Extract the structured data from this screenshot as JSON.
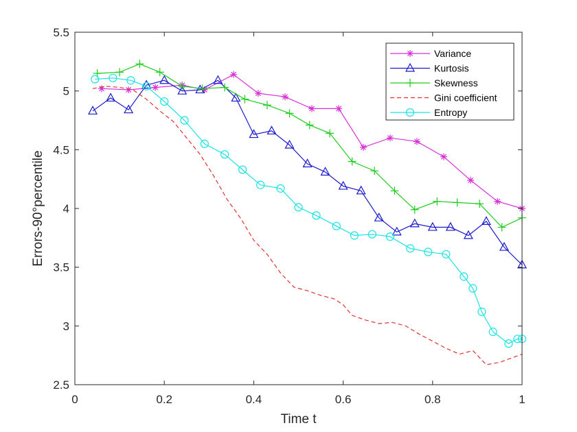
{
  "chart_data": {
    "type": "line",
    "title": "",
    "xlabel": "Time t",
    "ylabel": "Errors-90°percentile",
    "xlim": [
      0,
      1
    ],
    "ylim": [
      2.5,
      5.5
    ],
    "xticks": [
      "0",
      "0.2",
      "0.4",
      "0.6",
      "0.8",
      "1"
    ],
    "xtick_values": [
      0,
      0.2,
      0.4,
      0.6,
      0.8,
      1
    ],
    "yticks": [
      "2.5",
      "3",
      "3.5",
      "4",
      "4.5",
      "5",
      "5.5"
    ],
    "ytick_values": [
      2.5,
      3,
      3.5,
      4,
      4.5,
      5,
      5.5
    ],
    "grid": false,
    "legend_position": "top-right",
    "series": [
      {
        "name": "Variance",
        "color": "#d631d6",
        "marker": "asterisk",
        "dash": "solid",
        "x": [
          0.06,
          0.12,
          0.18,
          0.24,
          0.29,
          0.355,
          0.41,
          0.47,
          0.53,
          0.59,
          0.645,
          0.705,
          0.765,
          0.825,
          0.885,
          0.945,
          1.0
        ],
        "y": [
          5.02,
          5.01,
          5.03,
          5.05,
          5.01,
          5.14,
          4.98,
          4.95,
          4.85,
          4.85,
          4.52,
          4.6,
          4.57,
          4.44,
          4.24,
          4.06,
          4.0
        ]
      },
      {
        "name": "Kurtosis",
        "color": "#1a1acc",
        "marker": "triangle",
        "dash": "solid",
        "x": [
          0.04,
          0.08,
          0.12,
          0.16,
          0.2,
          0.24,
          0.28,
          0.32,
          0.36,
          0.4,
          0.44,
          0.48,
          0.52,
          0.56,
          0.6,
          0.64,
          0.68,
          0.72,
          0.76,
          0.8,
          0.84,
          0.88,
          0.92,
          0.96,
          1.0
        ],
        "y": [
          4.83,
          4.94,
          4.84,
          5.05,
          5.09,
          5.0,
          5.01,
          5.09,
          4.94,
          4.63,
          4.66,
          4.54,
          4.38,
          4.31,
          4.19,
          4.15,
          3.92,
          3.8,
          3.87,
          3.84,
          3.84,
          3.77,
          3.89,
          3.67,
          3.52
        ]
      },
      {
        "name": "Skewness",
        "color": "#1ccc1c",
        "marker": "plus",
        "dash": "solid",
        "x": [
          0.05,
          0.1,
          0.145,
          0.19,
          0.24,
          0.285,
          0.335,
          0.38,
          0.43,
          0.48,
          0.525,
          0.57,
          0.62,
          0.67,
          0.715,
          0.76,
          0.81,
          0.855,
          0.905,
          0.955,
          1.0
        ],
        "y": [
          5.15,
          5.16,
          5.23,
          5.16,
          5.04,
          5.02,
          5.03,
          4.93,
          4.88,
          4.81,
          4.71,
          4.64,
          4.4,
          4.32,
          4.15,
          3.99,
          4.06,
          4.05,
          4.04,
          3.84,
          3.92
        ]
      },
      {
        "name": "Gini coefficient",
        "color": "#e32f2f",
        "marker": "none",
        "dash": "dashed",
        "x": [
          0.04,
          0.07,
          0.1,
          0.13,
          0.16,
          0.19,
          0.22,
          0.25,
          0.28,
          0.31,
          0.34,
          0.37,
          0.4,
          0.43,
          0.46,
          0.49,
          0.52,
          0.55,
          0.58,
          0.6,
          0.62,
          0.65,
          0.68,
          0.71,
          0.74,
          0.77,
          0.8,
          0.83,
          0.86,
          0.89,
          0.92,
          0.95,
          1.0
        ],
        "y": [
          5.02,
          5.04,
          5.03,
          5.01,
          4.93,
          4.83,
          4.74,
          4.6,
          4.46,
          4.28,
          4.08,
          3.92,
          3.73,
          3.61,
          3.45,
          3.33,
          3.3,
          3.26,
          3.23,
          3.18,
          3.09,
          3.05,
          3.02,
          3.03,
          3.0,
          2.93,
          2.87,
          2.81,
          2.76,
          2.79,
          2.67,
          2.69,
          2.76
        ]
      },
      {
        "name": "Entropy",
        "color": "#17e3e3",
        "marker": "circle",
        "dash": "solid",
        "x": [
          0.045,
          0.085,
          0.125,
          0.16,
          0.2,
          0.245,
          0.29,
          0.335,
          0.375,
          0.415,
          0.46,
          0.5,
          0.54,
          0.585,
          0.625,
          0.665,
          0.705,
          0.75,
          0.79,
          0.83,
          0.87,
          0.89,
          0.91,
          0.935,
          0.97,
          0.99,
          1.0
        ],
        "y": [
          5.1,
          5.11,
          5.09,
          5.04,
          4.91,
          4.75,
          4.55,
          4.46,
          4.33,
          4.2,
          4.17,
          4.01,
          3.94,
          3.85,
          3.77,
          3.78,
          3.76,
          3.66,
          3.63,
          3.61,
          3.42,
          3.32,
          3.12,
          2.95,
          2.85,
          2.89,
          2.89
        ]
      }
    ]
  }
}
